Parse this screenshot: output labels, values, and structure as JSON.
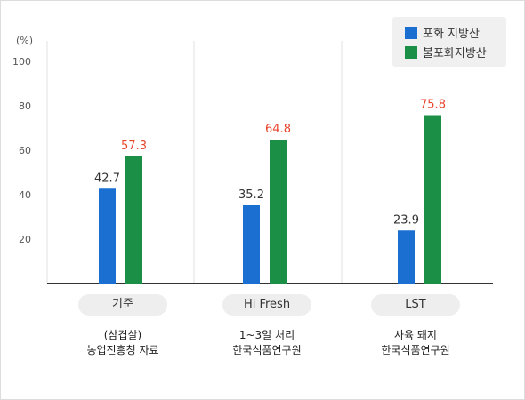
{
  "chart_data": {
    "type": "bar",
    "unit_label": "(%)",
    "y_ticks": [
      20,
      40,
      60,
      80,
      100
    ],
    "ylim": [
      0,
      100
    ],
    "categories": [
      "기준",
      "Hi Fresh",
      "LST"
    ],
    "category_notes": [
      [
        "(삼겹살)",
        "농업진흥청 자료"
      ],
      [
        "1~3일 처리",
        "한국식품연구원"
      ],
      [
        "사육 돼지",
        "한국식품연구원"
      ]
    ],
    "series": [
      {
        "name": "포화 지방산",
        "color": "#1a6fd0",
        "values": [
          42.7,
          35.2,
          23.9
        ],
        "label_color": "#333333"
      },
      {
        "name": "불포화지방산",
        "color": "#1a8f45",
        "values": [
          57.3,
          64.8,
          75.8
        ],
        "label_color": "#e8452c"
      }
    ],
    "grid": false,
    "legend": "top-right"
  }
}
